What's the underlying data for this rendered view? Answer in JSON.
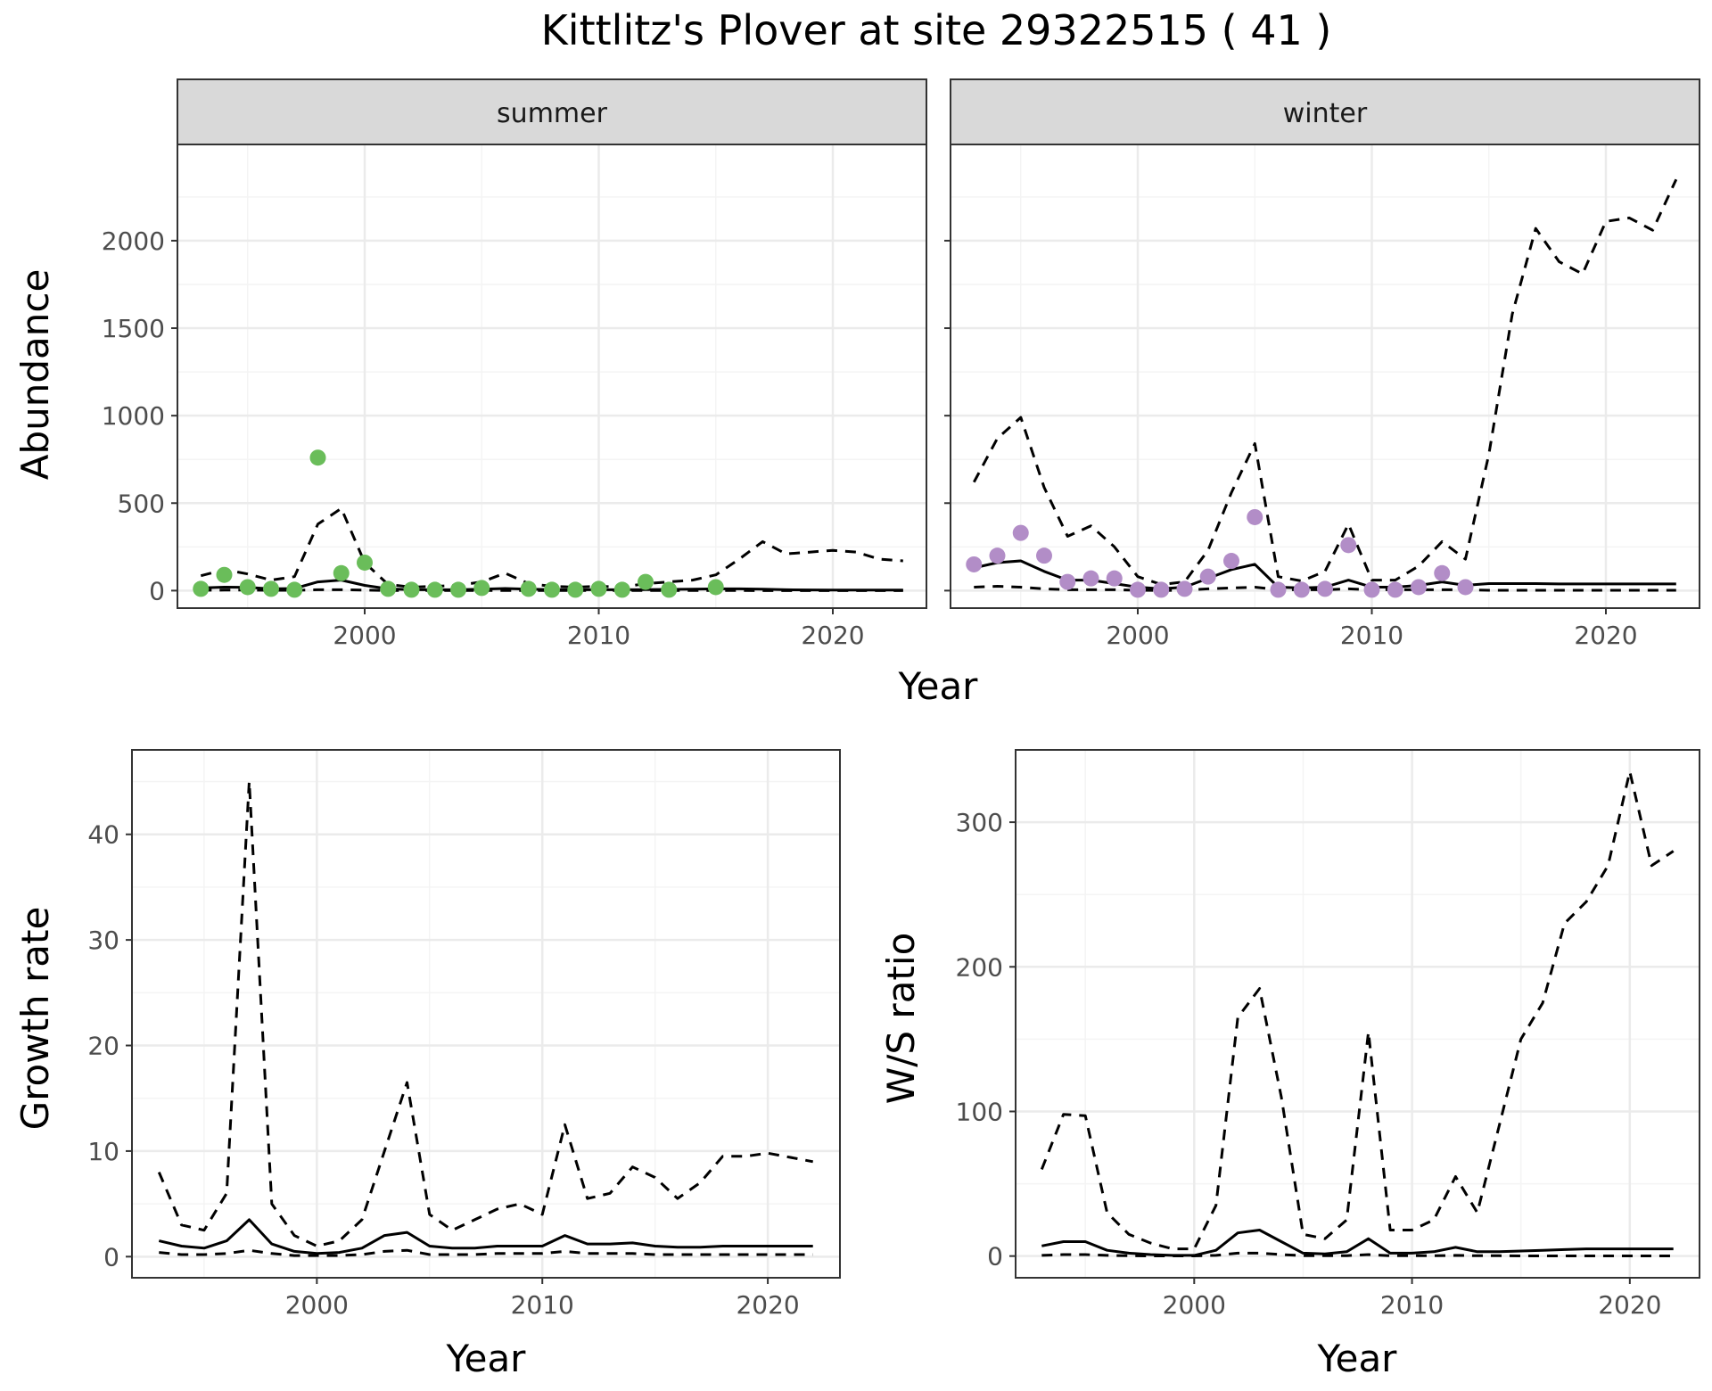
{
  "title": "Kittlitz's Plover at site 29322515 ( 41 )",
  "colors": {
    "summer_points": "#6abd5a",
    "winter_points": "#b28dc7",
    "line": "#000000",
    "grid_major": "#ebebeb",
    "grid_minor": "#f4f4f4",
    "strip_fill": "#d9d9d9",
    "strip_border": "#333333",
    "panel_border": "#333333"
  },
  "chart_data": [
    {
      "type": "line",
      "facet": "summer",
      "xlabel": "Year",
      "ylabel": "Abundance",
      "xlim": [
        1992,
        2024
      ],
      "ylim": [
        -100,
        2550
      ],
      "xticks": [
        2000,
        2010,
        2020
      ],
      "yticks": [
        0,
        500,
        1000,
        1500,
        2000
      ],
      "grid": true,
      "x": [
        1993,
        1994,
        1995,
        1996,
        1997,
        1998,
        1999,
        2000,
        2001,
        2002,
        2003,
        2004,
        2005,
        2006,
        2007,
        2008,
        2009,
        2010,
        2011,
        2012,
        2013,
        2014,
        2015,
        2016,
        2017,
        2018,
        2019,
        2020,
        2021,
        2022,
        2023
      ],
      "series": [
        {
          "style": "dashed",
          "values": [
            85,
            120,
            95,
            60,
            80,
            380,
            470,
            160,
            35,
            20,
            25,
            30,
            50,
            100,
            40,
            25,
            20,
            25,
            20,
            40,
            50,
            60,
            90,
            180,
            280,
            210,
            220,
            230,
            220,
            180,
            170
          ]
        },
        {
          "style": "solid",
          "values": [
            15,
            20,
            18,
            10,
            12,
            50,
            60,
            30,
            10,
            5,
            5,
            5,
            8,
            12,
            8,
            6,
            5,
            5,
            5,
            6,
            7,
            8,
            10,
            10,
            8,
            5,
            4,
            3,
            3,
            3,
            3
          ]
        },
        {
          "style": "dashed",
          "values": [
            2,
            3,
            3,
            2,
            2,
            5,
            5,
            3,
            1,
            1,
            1,
            1,
            1,
            1,
            1,
            1,
            1,
            1,
            1,
            1,
            1,
            1,
            1,
            1,
            0,
            0,
            0,
            0,
            0,
            0,
            0
          ]
        }
      ],
      "points": {
        "x": [
          1993,
          1994,
          1995,
          1996,
          1997,
          1998,
          1999,
          2000,
          2001,
          2002,
          2003,
          2004,
          2005,
          2007,
          2008,
          2009,
          2010,
          2011,
          2012,
          2013,
          2015
        ],
        "y": [
          10,
          90,
          20,
          10,
          5,
          760,
          100,
          160,
          10,
          5,
          5,
          5,
          15,
          10,
          5,
          5,
          10,
          5,
          50,
          5,
          20
        ]
      }
    },
    {
      "type": "line",
      "facet": "winter",
      "xlabel": "Year",
      "ylabel": "Abundance",
      "xlim": [
        1992,
        2024
      ],
      "ylim": [
        -100,
        2550
      ],
      "xticks": [
        2000,
        2010,
        2020
      ],
      "yticks": [
        0,
        500,
        1000,
        1500,
        2000
      ],
      "grid": true,
      "x": [
        1993,
        1994,
        1995,
        1996,
        1997,
        1998,
        1999,
        2000,
        2001,
        2002,
        2003,
        2004,
        2005,
        2006,
        2007,
        2008,
        2009,
        2010,
        2011,
        2012,
        2013,
        2014,
        2015,
        2016,
        2017,
        2018,
        2019,
        2020,
        2021,
        2022,
        2023
      ],
      "series": [
        {
          "style": "dashed",
          "values": [
            620,
            870,
            990,
            590,
            310,
            370,
            250,
            80,
            35,
            50,
            230,
            560,
            840,
            80,
            55,
            110,
            380,
            60,
            60,
            140,
            280,
            180,
            780,
            1580,
            2070,
            1880,
            1810,
            2110,
            2130,
            2060,
            2350
          ]
        },
        {
          "style": "solid",
          "values": [
            130,
            160,
            170,
            110,
            60,
            60,
            40,
            20,
            10,
            20,
            70,
            120,
            150,
            20,
            15,
            20,
            60,
            20,
            20,
            30,
            50,
            30,
            40,
            40,
            40,
            38,
            38,
            38,
            38,
            38,
            38
          ]
        },
        {
          "style": "dashed",
          "values": [
            20,
            25,
            20,
            10,
            5,
            5,
            5,
            2,
            1,
            2,
            10,
            15,
            20,
            5,
            5,
            5,
            10,
            5,
            5,
            5,
            5,
            5,
            2,
            2,
            2,
            2,
            2,
            2,
            2,
            2,
            2
          ]
        }
      ],
      "points": {
        "x": [
          1993,
          1994,
          1995,
          1996,
          1997,
          1998,
          1999,
          2000,
          2001,
          2002,
          2003,
          2004,
          2005,
          2006,
          2007,
          2008,
          2009,
          2010,
          2011,
          2012,
          2013,
          2014
        ],
        "y": [
          150,
          200,
          330,
          200,
          50,
          70,
          70,
          5,
          5,
          10,
          80,
          170,
          420,
          5,
          5,
          10,
          260,
          5,
          5,
          20,
          100,
          20
        ]
      }
    },
    {
      "type": "line",
      "xlabel": "Year",
      "ylabel": "Growth rate",
      "xlim": [
        1991.8,
        2023.2
      ],
      "ylim": [
        -2,
        48
      ],
      "xticks": [
        2000,
        2010,
        2020
      ],
      "yticks": [
        0,
        10,
        20,
        30,
        40
      ],
      "grid": true,
      "x": [
        1993,
        1994,
        1995,
        1996,
        1997,
        1998,
        1999,
        2000,
        2001,
        2002,
        2003,
        2004,
        2005,
        2006,
        2007,
        2008,
        2009,
        2010,
        2011,
        2012,
        2013,
        2014,
        2015,
        2016,
        2017,
        2018,
        2019,
        2020,
        2021,
        2022
      ],
      "series": [
        {
          "style": "dashed",
          "values": [
            8,
            3,
            2.5,
            6,
            45,
            5,
            2,
            1,
            1.5,
            3.5,
            10,
            16.5,
            4,
            2.5,
            3.5,
            4.5,
            5,
            4,
            12.5,
            5.5,
            6,
            8.5,
            7.5,
            5.5,
            7,
            9.5,
            9.5,
            9.8,
            9.4,
            9
          ]
        },
        {
          "style": "solid",
          "values": [
            1.5,
            1,
            0.8,
            1.5,
            3.5,
            1.2,
            0.5,
            0.3,
            0.4,
            0.8,
            2,
            2.3,
            1,
            0.8,
            0.8,
            1,
            1,
            1,
            2,
            1.2,
            1.2,
            1.3,
            1,
            0.9,
            0.9,
            1,
            1,
            1,
            1,
            1
          ]
        },
        {
          "style": "dashed",
          "values": [
            0.4,
            0.2,
            0.2,
            0.3,
            0.6,
            0.3,
            0.1,
            0.1,
            0.1,
            0.2,
            0.5,
            0.6,
            0.2,
            0.2,
            0.2,
            0.3,
            0.3,
            0.3,
            0.5,
            0.3,
            0.3,
            0.3,
            0.2,
            0.2,
            0.2,
            0.2,
            0.2,
            0.2,
            0.2,
            0.2
          ]
        }
      ]
    },
    {
      "type": "line",
      "xlabel": "Year",
      "ylabel": "W/S ratio",
      "xlim": [
        1991.8,
        2023.2
      ],
      "ylim": [
        -15,
        350
      ],
      "xticks": [
        2000,
        2010,
        2020
      ],
      "yticks": [
        0,
        100,
        200,
        300
      ],
      "grid": true,
      "x": [
        1993,
        1994,
        1995,
        1996,
        1997,
        1998,
        1999,
        2000,
        2001,
        2002,
        2003,
        2004,
        2005,
        2006,
        2007,
        2008,
        2009,
        2010,
        2011,
        2012,
        2013,
        2014,
        2015,
        2016,
        2017,
        2018,
        2019,
        2020,
        2021,
        2022
      ],
      "series": [
        {
          "style": "dashed",
          "values": [
            60,
            98,
            97,
            30,
            15,
            9,
            5,
            5,
            35,
            165,
            185,
            110,
            15,
            12,
            25,
            155,
            18,
            18,
            25,
            55,
            30,
            90,
            150,
            175,
            230,
            245,
            270,
            335,
            270,
            280
          ]
        },
        {
          "style": "solid",
          "values": [
            7,
            10,
            10,
            4,
            2,
            1,
            0.5,
            0.5,
            4,
            16,
            18,
            10,
            2,
            1.5,
            3,
            12,
            2,
            2,
            3,
            6,
            3,
            3,
            3.5,
            4,
            4.5,
            5,
            5,
            5,
            5,
            5
          ]
        },
        {
          "style": "dashed",
          "values": [
            0.5,
            1,
            1,
            0.5,
            0.2,
            0.1,
            0.1,
            0.1,
            0.5,
            2,
            2,
            1,
            0.3,
            0.2,
            0.3,
            1,
            0.2,
            0.2,
            0.2,
            0.5,
            0.2,
            0.2,
            0.1,
            0.1,
            0.1,
            0.1,
            0.1,
            0.1,
            0.1,
            0.1
          ]
        }
      ]
    }
  ],
  "facets": {
    "summer": "summer",
    "winter": "winter"
  },
  "labels": {
    "top_xlabel": "Year",
    "top_ylabel": "Abundance",
    "growth_xlabel": "Year",
    "growth_ylabel": "Growth rate",
    "ratio_xlabel": "Year",
    "ratio_ylabel": "W/S ratio"
  }
}
